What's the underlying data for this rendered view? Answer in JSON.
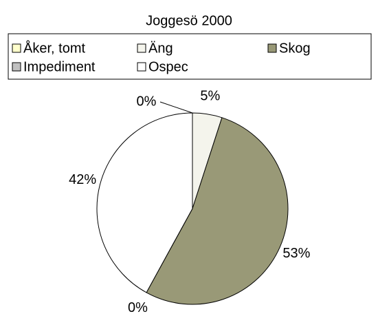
{
  "chart_data": {
    "type": "pie",
    "title": "Joggesö 2000",
    "categories": [
      "Åker, tomt",
      "Äng",
      "Skog",
      "Impediment",
      "Ospec"
    ],
    "values": [
      0,
      5,
      53,
      0,
      42
    ],
    "value_labels": [
      "0%",
      "5%",
      "53%",
      "0%",
      "42%"
    ],
    "colors": [
      "#ffffcc",
      "#f4f4ec",
      "#999977",
      "#c0c0c0",
      "#ffffff"
    ]
  }
}
